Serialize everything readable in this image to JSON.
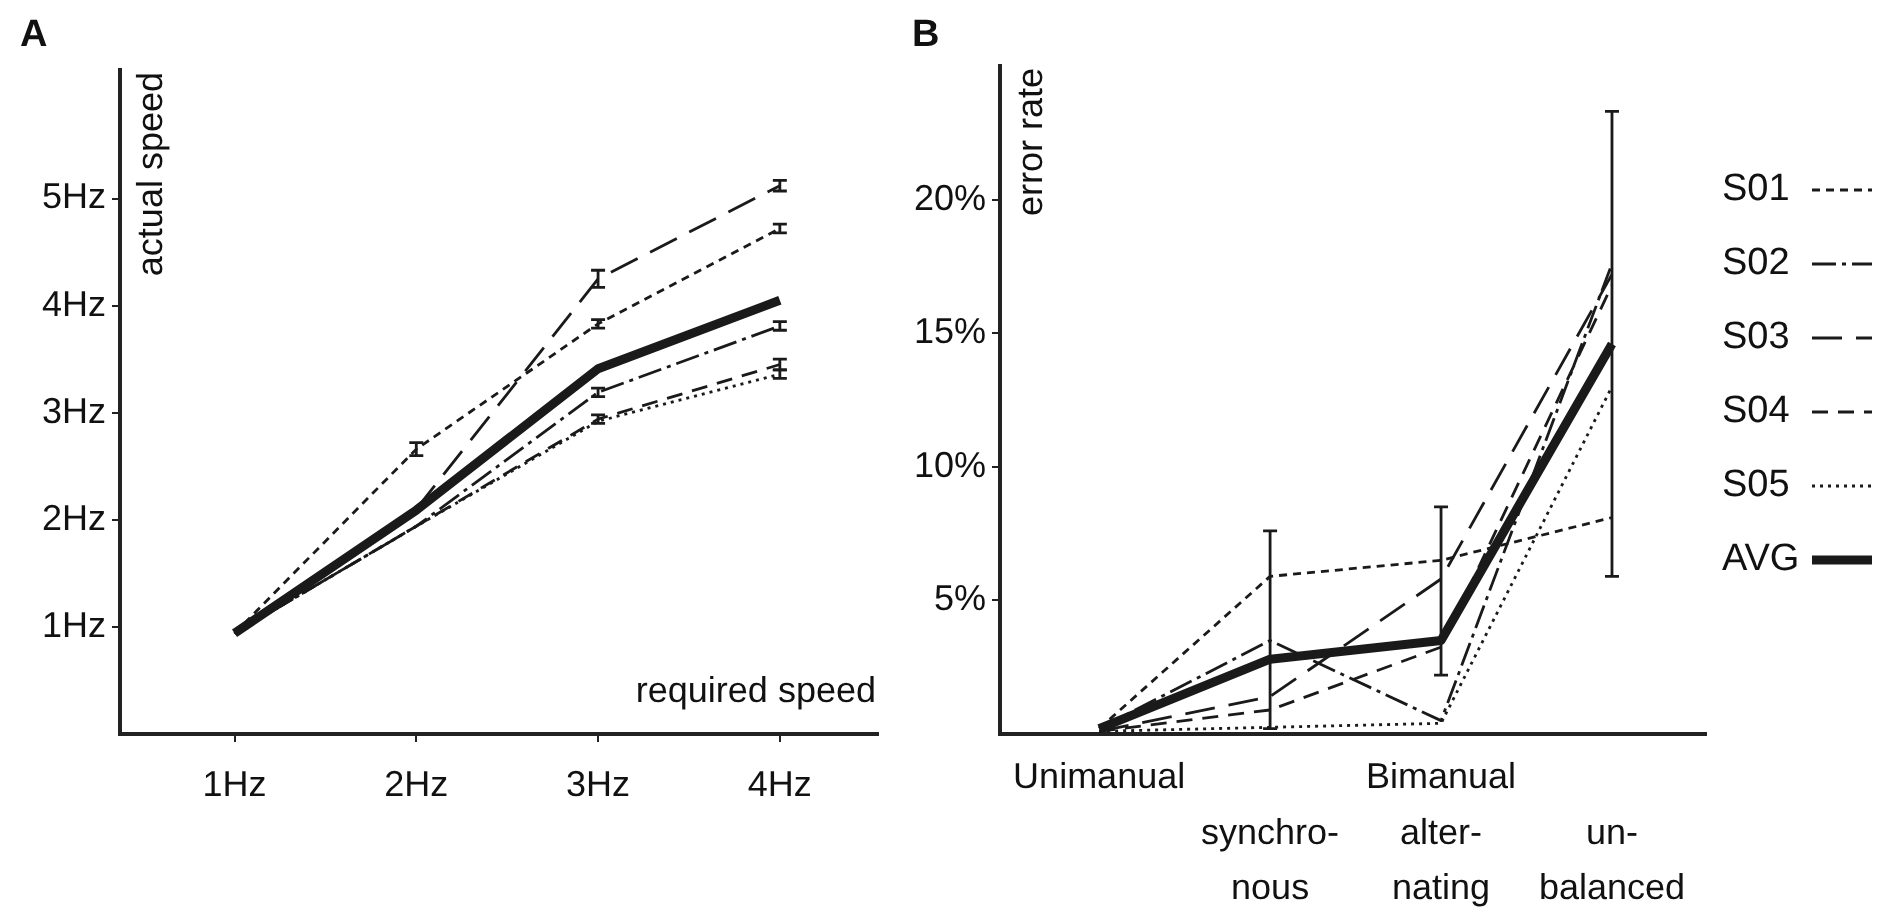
{
  "chart_data": [
    {
      "type": "line",
      "title": "A",
      "xlabel": "required speed",
      "ylabel": "actual speed",
      "x": [
        1,
        2,
        3,
        4
      ],
      "xlim": [
        0.37,
        4.54
      ],
      "xticks": [
        {
          "value": 1,
          "label": "1Hz"
        },
        {
          "value": 2,
          "label": "2Hz"
        },
        {
          "value": 3,
          "label": "3Hz"
        },
        {
          "value": 4,
          "label": "4Hz"
        }
      ],
      "ylim": [
        0,
        6.2
      ],
      "yticks": [
        {
          "value": 1,
          "label": "1Hz"
        },
        {
          "value": 2,
          "label": "2Hz"
        },
        {
          "value": 3,
          "label": "3Hz"
        },
        {
          "value": 4,
          "label": "4Hz"
        },
        {
          "value": 5,
          "label": "5Hz"
        }
      ],
      "grid": false,
      "series": [
        {
          "color": "#1a1a1a",
          "line_style": "shortdash",
          "values": [
            0.94,
            2.66,
            3.83,
            4.72
          ],
          "errors": [
            null,
            0.06,
            0.04,
            0.04
          ]
        },
        {
          "color": "#1a1a1a",
          "line_style": "dashdot",
          "values": [
            0.94,
            1.94,
            3.19,
            3.81
          ],
          "errors": [
            null,
            null,
            0.04,
            0.04
          ]
        },
        {
          "color": "#1a1a1a",
          "line_style": "longdash",
          "values": [
            0.94,
            2.1,
            4.25,
            5.12
          ],
          "errors": [
            null,
            null,
            0.08,
            0.05
          ]
        },
        {
          "color": "#1a1a1a",
          "line_style": "dashed",
          "values": [
            0.94,
            1.94,
            2.94,
            3.45
          ],
          "errors": [
            null,
            null,
            0.04,
            0.05
          ]
        },
        {
          "color": "#1a1a1a",
          "line_style": "dotted",
          "values": [
            0.94,
            1.94,
            2.92,
            3.36
          ],
          "errors": [
            null,
            null,
            null,
            0.04
          ]
        },
        {
          "color": "#1a1a1a",
          "line_style": "solid",
          "values": [
            0.94,
            2.09,
            3.41,
            4.05
          ]
        }
      ]
    },
    {
      "type": "line",
      "title": "B",
      "ylabel": "error rate",
      "categories": [
        "Unimanual",
        "synchro-\nnous",
        "alter-\nnating",
        "un-\nbalanced"
      ],
      "annotations": [
        "Bimanual"
      ],
      "ylim": [
        0,
        25
      ],
      "yticks": [
        {
          "value": 5,
          "label": "5%"
        },
        {
          "value": 10,
          "label": "10%"
        },
        {
          "value": 15,
          "label": "15%"
        },
        {
          "value": 20,
          "label": "20%"
        }
      ],
      "grid": false,
      "marker": "none",
      "legend": "right",
      "series": [
        {
          "name": "S01",
          "color": "#1a1a1a",
          "line_style": "shortdash",
          "values": [
            0.2,
            5.9,
            6.5,
            8.1
          ]
        },
        {
          "name": "S02",
          "color": "#1a1a1a",
          "line_style": "dashdot",
          "values": [
            0.2,
            3.5,
            0.5,
            17.6
          ]
        },
        {
          "name": "S03",
          "color": "#1a1a1a",
          "line_style": "longdash",
          "values": [
            0.1,
            1.4,
            5.8,
            17.2
          ]
        },
        {
          "name": "S04",
          "color": "#1a1a1a",
          "line_style": "dashed",
          "values": [
            0.1,
            0.9,
            3.25,
            16.8
          ]
        },
        {
          "name": "S05",
          "color": "#1a1a1a",
          "line_style": "dotted",
          "values": [
            0.1,
            0.25,
            0.4,
            13
          ]
        },
        {
          "name": "AVG",
          "color": "#1a1a1a",
          "line_style": "solid",
          "values": [
            0.2,
            2.8,
            3.5,
            14.6
          ],
          "errors": [
            null,
            [
              0.2,
              7.6
            ],
            [
              2.2,
              8.5
            ],
            8.7
          ]
        }
      ]
    }
  ]
}
